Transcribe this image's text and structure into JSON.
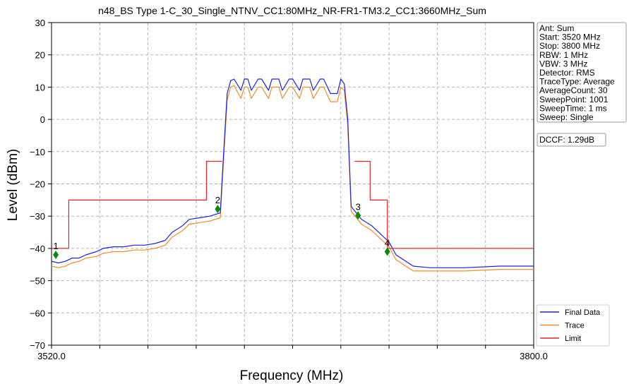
{
  "chart_data": {
    "type": "line",
    "title": "n48_BS Type 1-C_30_Single_NTNV_CC1:80MHz_NR-FR1-TM3.2_CC1:3660MHz_Sum",
    "xlabel": "Frequency (MHz)",
    "ylabel": "Level (dBm)",
    "xlim": [
      3520,
      3800
    ],
    "ylim": [
      -70,
      30
    ],
    "x_tick_labels": [
      "3520.0",
      "3800.0"
    ],
    "x_minor_ticks": [
      3520,
      3548,
      3576,
      3604,
      3632,
      3660,
      3688,
      3716,
      3744,
      3772,
      3800
    ],
    "y_ticks": [
      30,
      20,
      10,
      0,
      -10,
      -20,
      -30,
      -40,
      -50,
      -60,
      -70
    ],
    "grid": true,
    "legend_position": "bottom-right",
    "legend": [
      "Final Data",
      "Trace",
      "Limit"
    ],
    "series": [
      {
        "name": "Final Data",
        "color": "#1f1fe6",
        "x": [
          3520,
          3524,
          3528,
          3532,
          3536,
          3540,
          3546,
          3550,
          3556,
          3562,
          3568,
          3574,
          3580,
          3586,
          3590,
          3596,
          3600,
          3606,
          3612,
          3618,
          3620,
          3622,
          3624,
          3626,
          3630,
          3632,
          3634,
          3636,
          3640,
          3642,
          3646,
          3648,
          3652,
          3654,
          3658,
          3660,
          3664,
          3666,
          3670,
          3672,
          3676,
          3678,
          3682,
          3684,
          3686,
          3688,
          3690,
          3692,
          3694,
          3700,
          3706,
          3710,
          3716,
          3720,
          3730,
          3740,
          3760,
          3780,
          3800
        ],
        "y": [
          -44,
          -44.5,
          -44,
          -43,
          -43,
          -42,
          -41,
          -40,
          -39.5,
          -39.5,
          -39,
          -39,
          -38.5,
          -37.5,
          -35,
          -33,
          -31,
          -30.5,
          -30,
          -29,
          -10,
          8,
          12,
          12.5,
          9,
          12.5,
          12.5,
          9,
          12.5,
          12.5,
          9,
          12.5,
          12.5,
          9,
          12.5,
          12.5,
          9,
          12.5,
          12.5,
          9,
          12.5,
          12.5,
          8,
          8,
          8,
          12.5,
          11,
          0,
          -27,
          -31,
          -33,
          -35,
          -38,
          -42,
          -45.5,
          -46,
          -46,
          -45.5,
          -45.5
        ]
      },
      {
        "name": "Trace",
        "color": "#f28c28",
        "x": [
          3520,
          3524,
          3528,
          3532,
          3536,
          3540,
          3546,
          3550,
          3556,
          3562,
          3568,
          3574,
          3580,
          3586,
          3590,
          3596,
          3600,
          3606,
          3612,
          3618,
          3620,
          3622,
          3624,
          3626,
          3630,
          3632,
          3634,
          3636,
          3640,
          3642,
          3646,
          3648,
          3652,
          3654,
          3658,
          3660,
          3664,
          3666,
          3670,
          3672,
          3676,
          3678,
          3682,
          3684,
          3686,
          3688,
          3690,
          3692,
          3694,
          3700,
          3706,
          3710,
          3716,
          3720,
          3730,
          3740,
          3760,
          3780,
          3800
        ],
        "y": [
          -45.5,
          -46,
          -45.5,
          -44.5,
          -44,
          -43,
          -42.5,
          -41.5,
          -41,
          -41,
          -40.5,
          -40.5,
          -40,
          -39,
          -36.5,
          -34.5,
          -32.5,
          -32,
          -31.5,
          -30.5,
          -12,
          6,
          10,
          10.5,
          6.5,
          10,
          10,
          6.5,
          10,
          10,
          6.5,
          10,
          10,
          6.5,
          10,
          10,
          6.5,
          10,
          10,
          6.5,
          10,
          10,
          5.5,
          5.5,
          5.5,
          10,
          9,
          -2,
          -28.5,
          -32.5,
          -34.5,
          -36.5,
          -39.5,
          -43.5,
          -47,
          -47,
          -47,
          -46.5,
          -46.5
        ]
      },
      {
        "name": "Limit",
        "color": "#e8262a",
        "x": [
          3520,
          3530,
          3530,
          3610,
          3610,
          3619,
          null,
          3696,
          3705,
          3705,
          3715,
          3715,
          3800
        ],
        "y": [
          -40,
          -40,
          -25,
          -25,
          -13,
          -13,
          null,
          -13,
          -13,
          -25,
          -25,
          -40,
          -40
        ]
      }
    ],
    "markers": [
      {
        "label": "1",
        "x": 3522.5,
        "y": -42,
        "color": "#0a8a0a"
      },
      {
        "label": "2",
        "x": 3616.5,
        "y": -27.8,
        "color": "#0a8a0a"
      },
      {
        "label": "3",
        "x": 3698,
        "y": -29.8,
        "color": "#0a8a0a"
      },
      {
        "label": "4",
        "x": 3715,
        "y": -41,
        "color": "#0a8a0a"
      }
    ],
    "annotations": {
      "info_lines": [
        "Ant: Sum",
        "Start: 3520 MHz",
        "Stop: 3800 MHz",
        "RBW: 1 MHz",
        "VBW: 3 MHz",
        "Detector: RMS",
        "TraceType: Average",
        "AverageCount: 30",
        "SweepPoint: 1001",
        "SweepTime: 1 ms",
        "Sweep: Single"
      ],
      "dccf": "DCCF: 1.29dB"
    }
  }
}
